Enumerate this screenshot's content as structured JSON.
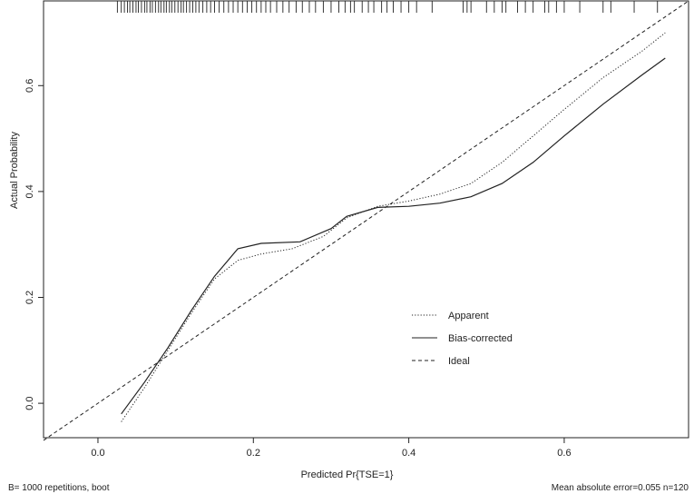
{
  "chart_data": {
    "type": "line",
    "xlabel": "Predicted Pr{TSE=1}",
    "ylabel": "Actual Probability",
    "footer_left": "B= 1000 repetitions, boot",
    "footer_right": "Mean absolute error=0.055 n=120",
    "xlim": [
      -0.07,
      0.76
    ],
    "ylim": [
      -0.065,
      0.76
    ],
    "x_ticks": [
      0.0,
      0.2,
      0.4,
      0.6
    ],
    "x_tick_labels": [
      "0.0",
      "0.2",
      "0.4",
      "0.6"
    ],
    "y_ticks": [
      0.0,
      0.2,
      0.4,
      0.6
    ],
    "y_tick_labels": [
      "0.0",
      "0.2",
      "0.4",
      "0.6"
    ],
    "legend_position": "center-right",
    "grid": false,
    "series": [
      {
        "name": "Apparent",
        "style": "dotted",
        "x": [
          0.03,
          0.06,
          0.09,
          0.12,
          0.15,
          0.18,
          0.21,
          0.25,
          0.29,
          0.32,
          0.36,
          0.4,
          0.44,
          0.48,
          0.52,
          0.56,
          0.6,
          0.65,
          0.7,
          0.73
        ],
        "y": [
          -0.035,
          0.03,
          0.1,
          0.17,
          0.235,
          0.27,
          0.282,
          0.292,
          0.315,
          0.35,
          0.372,
          0.382,
          0.395,
          0.415,
          0.455,
          0.505,
          0.555,
          0.615,
          0.665,
          0.7
        ]
      },
      {
        "name": "Bias-corrected",
        "style": "solid",
        "x": [
          0.03,
          0.06,
          0.09,
          0.12,
          0.15,
          0.18,
          0.21,
          0.26,
          0.3,
          0.32,
          0.36,
          0.4,
          0.44,
          0.48,
          0.52,
          0.56,
          0.6,
          0.65,
          0.7,
          0.73
        ],
        "y": [
          -0.02,
          0.04,
          0.105,
          0.175,
          0.24,
          0.292,
          0.302,
          0.305,
          0.33,
          0.353,
          0.37,
          0.372,
          0.378,
          0.39,
          0.415,
          0.455,
          0.505,
          0.565,
          0.62,
          0.652
        ]
      },
      {
        "name": "Ideal",
        "style": "dashed",
        "x": [
          -0.07,
          0.76
        ],
        "y": [
          -0.07,
          0.76
        ]
      }
    ],
    "rug_x": [
      0.025,
      0.03,
      0.034,
      0.038,
      0.041,
      0.045,
      0.049,
      0.052,
      0.056,
      0.06,
      0.063,
      0.067,
      0.07,
      0.074,
      0.078,
      0.081,
      0.085,
      0.088,
      0.092,
      0.095,
      0.099,
      0.103,
      0.107,
      0.11,
      0.114,
      0.118,
      0.122,
      0.126,
      0.13,
      0.135,
      0.14,
      0.145,
      0.15,
      0.156,
      0.162,
      0.168,
      0.174,
      0.18,
      0.186,
      0.192,
      0.198,
      0.204,
      0.21,
      0.216,
      0.222,
      0.23,
      0.238,
      0.246,
      0.255,
      0.263,
      0.272,
      0.28,
      0.29,
      0.3,
      0.31,
      0.318,
      0.325,
      0.33,
      0.34,
      0.348,
      0.355,
      0.365,
      0.372,
      0.38,
      0.39,
      0.4,
      0.41,
      0.43,
      0.47,
      0.475,
      0.48,
      0.5,
      0.51,
      0.52,
      0.525,
      0.54,
      0.55,
      0.56,
      0.575,
      0.58,
      0.59,
      0.6,
      0.62,
      0.65,
      0.66,
      0.69,
      0.72
    ]
  }
}
